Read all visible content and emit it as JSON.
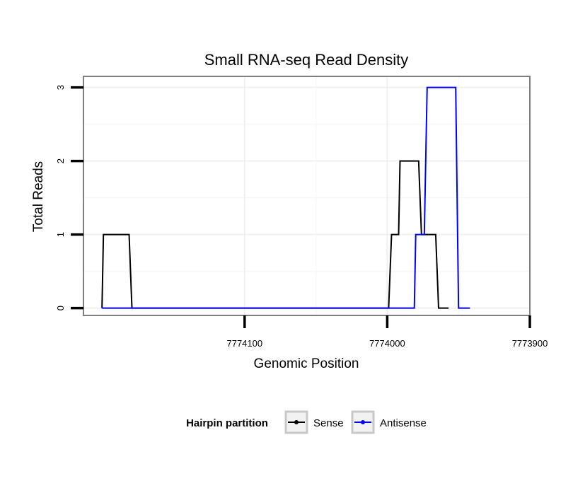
{
  "chart_data": {
    "type": "line",
    "title": "Small RNA-seq Read Density",
    "xlabel": "Genomic Position",
    "ylabel": "Total Reads",
    "x_reversed": true,
    "xlim": [
      7774213,
      7773900
    ],
    "ylim": [
      -0.1,
      3.15
    ],
    "x_ticks": [
      7774100,
      7774000,
      7773900
    ],
    "x_tick_labels": [
      "7774100",
      "7774000",
      "7773900"
    ],
    "y_ticks": [
      0,
      1,
      2,
      3
    ],
    "y_tick_labels": [
      "0",
      "1",
      "2",
      "3"
    ],
    "grid": true,
    "legend": {
      "title": "Hairpin partition",
      "position": "bottom",
      "entries": [
        "Sense",
        "Antisense"
      ]
    },
    "series": [
      {
        "name": "Sense",
        "color": "#000000",
        "x": [
          7774200,
          7774199,
          7774181,
          7774179,
          7773999,
          7773997,
          7773992,
          7773991,
          7773978,
          7773976,
          7773966,
          7773964,
          7773960,
          7773957
        ],
        "y": [
          0,
          1,
          1,
          0,
          0,
          1,
          1,
          2,
          2,
          1,
          1,
          0,
          0,
          0
        ]
      },
      {
        "name": "Antisense",
        "color": "#0000ff",
        "x": [
          7774200,
          7773981,
          7773980,
          7773974,
          7773972,
          7773952,
          7773950,
          7773942
        ],
        "y": [
          0,
          0,
          1,
          1,
          3,
          3,
          0,
          0
        ]
      }
    ]
  }
}
